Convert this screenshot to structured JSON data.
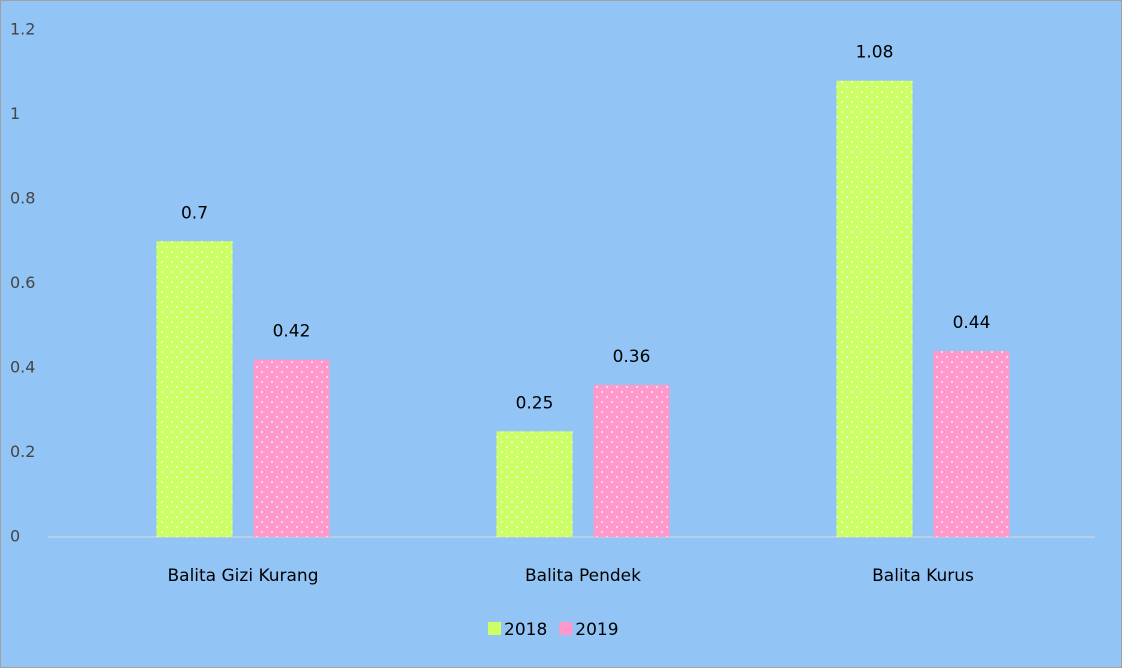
{
  "chart_data": {
    "type": "bar",
    "categories": [
      "Balita Gizi Kurang",
      "Balita Pendek",
      "Balita Kurus"
    ],
    "series": [
      {
        "name": "2018",
        "color": "#ccff66",
        "values": [
          0.7,
          0.25,
          1.08
        ]
      },
      {
        "name": "2019",
        "color": "#ff99cc",
        "values": [
          0.42,
          0.36,
          0.44
        ]
      }
    ],
    "ylim": [
      0,
      1.2
    ],
    "yticks": [
      0,
      0.2,
      0.4,
      0.6,
      0.8,
      1,
      1.2
    ],
    "grid": false,
    "legend": "bottom"
  }
}
